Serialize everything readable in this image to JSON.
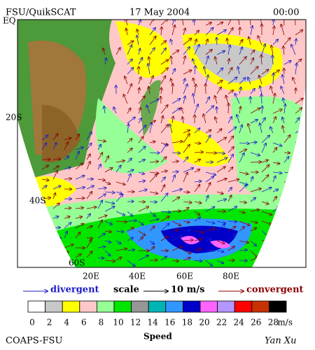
{
  "header": {
    "left": "FSU/QuikSCAT",
    "date": "17 May 2004",
    "time": "00:00"
  },
  "map": {
    "lat_labels": [
      "EQ",
      "20S",
      "40S",
      "60S"
    ],
    "lon_labels": [
      "20E",
      "40E",
      "60E",
      "80E"
    ]
  },
  "legend": {
    "divergent": "divergent",
    "scale": "scale",
    "scale_value": "10 m/s",
    "convergent": "convergent"
  },
  "colorbar": {
    "title": "Speed",
    "unit": "m/s",
    "ticks": [
      0,
      2,
      4,
      6,
      8,
      10,
      12,
      14,
      16,
      18,
      20,
      22,
      24,
      26,
      28
    ],
    "colors": [
      "#ffffff",
      "#c8c8c8",
      "#ffff00",
      "#ffc8c8",
      "#96ff96",
      "#00e600",
      "#969696",
      "#00b4b4",
      "#3296ff",
      "#0000c8",
      "#ff64ff",
      "#b496ff",
      "#ff0000",
      "#c83200",
      "#000000"
    ]
  },
  "footer": {
    "left": "COAPS-FSU",
    "right": "Yan Xu"
  }
}
